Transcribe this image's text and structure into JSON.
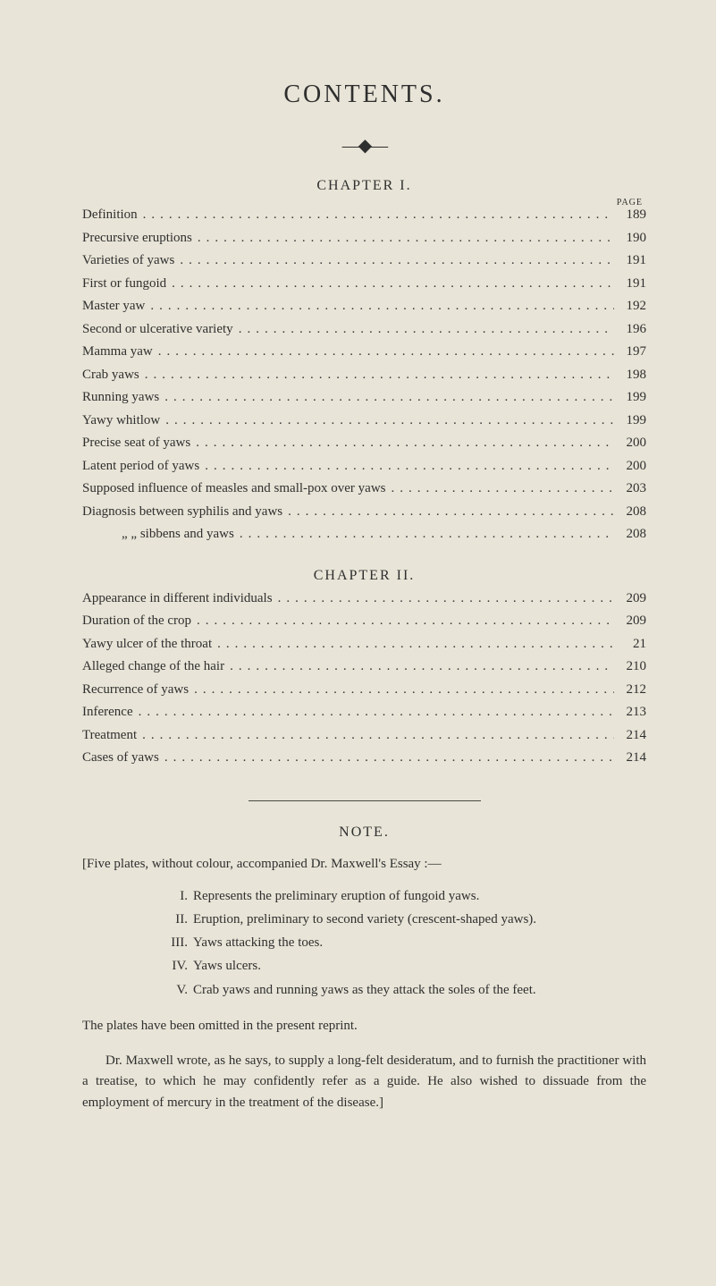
{
  "colors": {
    "background": "#e8e4d7",
    "text": "#2f2f2f",
    "rule": "#4a4a44"
  },
  "typography": {
    "title_fontsize": 28,
    "body_fontsize": 15,
    "heading_fontsize": 16,
    "pagelabel_fontsize": 10
  },
  "title": "CONTENTS.",
  "arrow_glyph": "—◆—",
  "page_label": "PAGE",
  "chapter1": {
    "heading": "CHAPTER I.",
    "items": [
      {
        "label": "Definition",
        "page": "189"
      },
      {
        "label": "Precursive eruptions",
        "page": "190"
      },
      {
        "label": "Varieties of yaws",
        "page": "191"
      },
      {
        "label": "First or fungoid",
        "page": "191"
      },
      {
        "label": "Master yaw",
        "page": "192"
      },
      {
        "label": "Second or ulcerative variety",
        "page": "196"
      },
      {
        "label": "Mamma yaw",
        "page": "197"
      },
      {
        "label": "Crab yaws",
        "page": "198"
      },
      {
        "label": "Running yaws",
        "page": "199"
      },
      {
        "label": "Yawy whitlow",
        "page": "199"
      },
      {
        "label": "Precise seat of yaws",
        "page": "200"
      },
      {
        "label": "Latent period of yaws",
        "page": "200"
      },
      {
        "label": "Supposed influence of measles and small-pox over yaws",
        "page": "203"
      },
      {
        "label": "Diagnosis between syphilis and yaws",
        "page": "208"
      },
      {
        "label": "„        „     sibbens and yaws",
        "page": "208",
        "indent": true
      }
    ]
  },
  "chapter2": {
    "heading": "CHAPTER II.",
    "items": [
      {
        "label": "Appearance in different individuals",
        "page": "209"
      },
      {
        "label": "Duration of the crop",
        "page": "209"
      },
      {
        "label": "Yawy ulcer of the throat",
        "page": "21"
      },
      {
        "label": "Alleged change of the hair",
        "page": "210"
      },
      {
        "label": "Recurrence of yaws",
        "page": "212"
      },
      {
        "label": "Inference",
        "page": "213"
      },
      {
        "label": "Treatment",
        "page": "214"
      },
      {
        "label": "Cases of yaws",
        "page": "214"
      }
    ]
  },
  "note": {
    "heading": "NOTE.",
    "intro": "[Five plates, without colour, accompanied Dr. Maxwell's Essay :—",
    "items": [
      {
        "num": "I.",
        "text": "Represents the preliminary eruption of fungoid yaws."
      },
      {
        "num": "II.",
        "text": "Eruption, preliminary to second variety (crescent-shaped yaws)."
      },
      {
        "num": "III.",
        "text": "Yaws attacking the toes."
      },
      {
        "num": "IV.",
        "text": "Yaws ulcers."
      },
      {
        "num": "V.",
        "text": "Crab yaws and running yaws as they attack the soles of the feet."
      }
    ],
    "para1": "The plates have been omitted in the present reprint.",
    "para2": "Dr. Maxwell wrote, as he says, to supply a long-felt desideratum, and to furnish the practitioner with a treatise, to which he may confidently refer as a guide. He also wished to dissuade from the employment of mercury in the treatment of the disease.]"
  }
}
